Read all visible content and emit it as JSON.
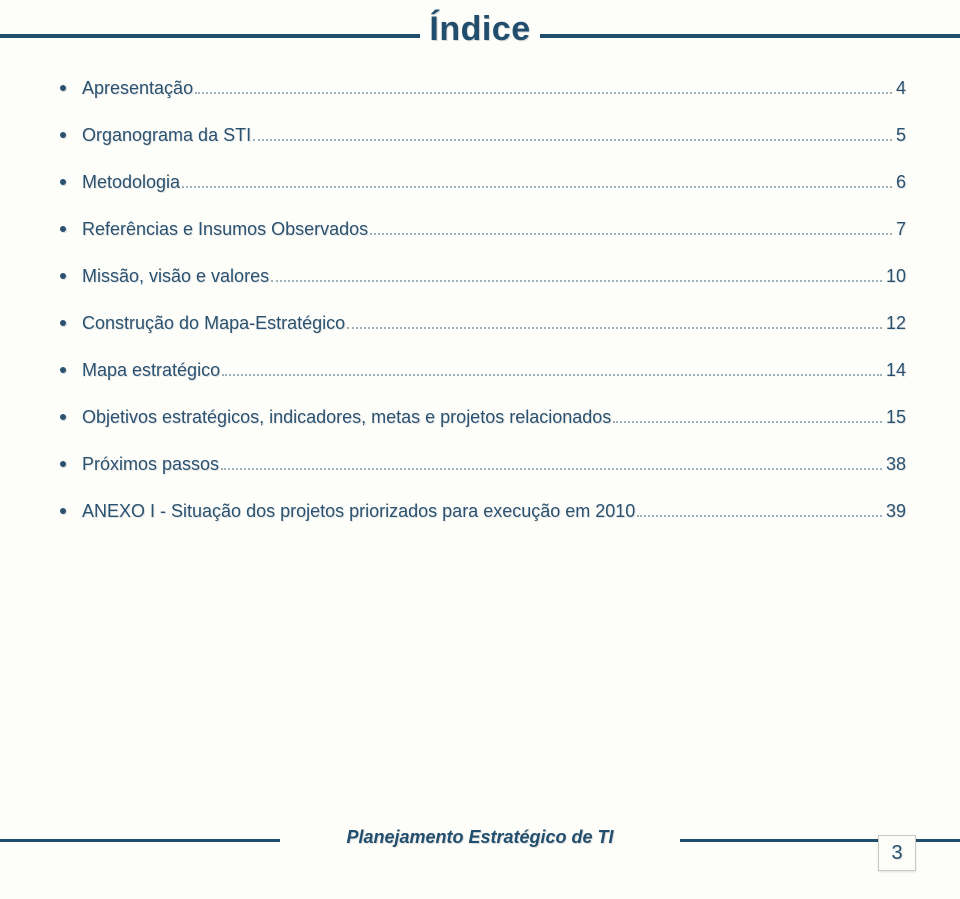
{
  "title": "Índice",
  "colors": {
    "primary": "#224e6d",
    "text": "#2a5270",
    "rule": "#224e6d",
    "shadow": "#e4e4e4",
    "leader": "#9fb0bd",
    "background": "#fdfdfa",
    "box_border": "#c9c9c2"
  },
  "typography": {
    "title_fontsize": 34,
    "item_fontsize": 18,
    "footer_fontsize": 18,
    "pagenum_fontsize": 20,
    "family": "Verdana"
  },
  "toc": [
    {
      "label": "Apresentação",
      "page": "4"
    },
    {
      "label": "Organograma da STI",
      "page": "5"
    },
    {
      "label": "Metodologia",
      "page": "6"
    },
    {
      "label": "Referências e Insumos Observados",
      "page": "7"
    },
    {
      "label": "Missão, visão e valores",
      "page": "10"
    },
    {
      "label": "Construção do Mapa-Estratégico",
      "page": "12"
    },
    {
      "label": "Mapa estratégico",
      "page": "14"
    },
    {
      "label": "Objetivos estratégicos, indicadores, metas e projetos relacionados",
      "page": "15"
    },
    {
      "label": "Próximos passos",
      "page": "38"
    },
    {
      "label": "ANEXO I  - Situação dos projetos priorizados para execução em 2010",
      "page": "39"
    }
  ],
  "footer": "Planejamento Estratégico de TI",
  "page_number": "3"
}
